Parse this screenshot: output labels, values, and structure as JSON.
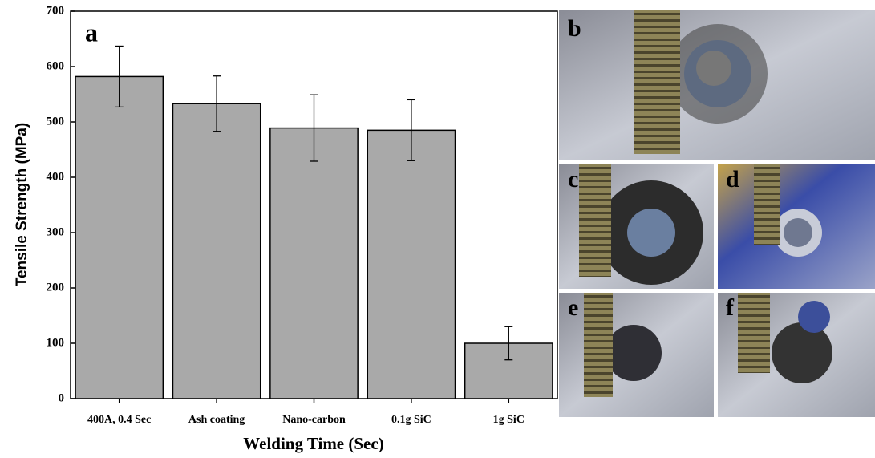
{
  "chart_data": {
    "type": "bar",
    "panel_label": "a",
    "x_label": "Welding Time (Sec)",
    "y_label": "Tensile Strength (MPa)",
    "categories": [
      "400A, 0.4 Sec",
      "Ash coating",
      "Nano-carbon",
      "0.1g SiC",
      "1g SiC"
    ],
    "values": [
      582,
      533,
      489,
      485,
      100
    ],
    "errors": [
      55,
      50,
      60,
      55,
      30
    ],
    "color": "#a9a9a9",
    "ylim": [
      0,
      700
    ],
    "yticks": [
      0,
      100,
      200,
      300,
      400,
      500,
      600,
      700
    ],
    "grid": false,
    "photo_labels": [
      "b",
      "c",
      "d",
      "e",
      "f"
    ]
  }
}
